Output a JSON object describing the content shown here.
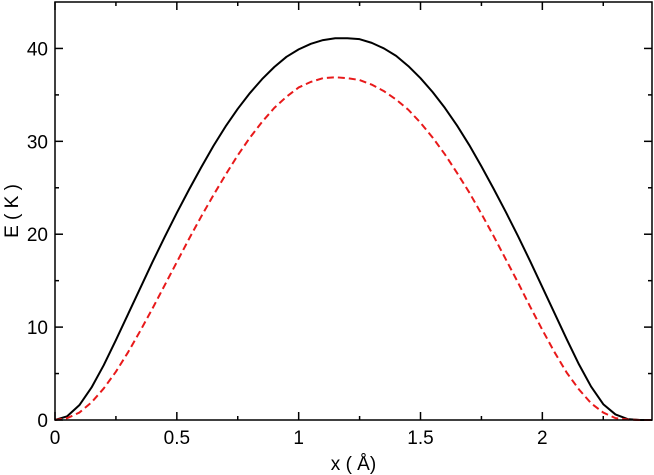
{
  "chart_data": {
    "type": "line",
    "title": "",
    "xlabel": "x ( Å)",
    "ylabel": "E ( K )",
    "xlim": [
      0,
      2.45
    ],
    "ylim": [
      0,
      45
    ],
    "grid": false,
    "legend": "none",
    "x_ticks": [
      0,
      0.5,
      1,
      1.5,
      2
    ],
    "x_tick_labels": [
      "0",
      "0.5",
      "1",
      "1.5",
      "2"
    ],
    "x_minor_ticks": [
      0.25,
      0.75,
      1.25,
      1.75,
      2.25
    ],
    "y_ticks": [
      0,
      10,
      20,
      30,
      40
    ],
    "y_tick_labels": [
      "0",
      "10",
      "20",
      "30",
      "40"
    ],
    "y_minor_ticks": [
      5,
      15,
      25,
      35
    ],
    "series": [
      {
        "color": "#000000",
        "style": "solid",
        "x": [
          0,
          0.05,
          0.1,
          0.15,
          0.2,
          0.25,
          0.3,
          0.35,
          0.4,
          0.45,
          0.5,
          0.55,
          0.6,
          0.65,
          0.7,
          0.75,
          0.8,
          0.85,
          0.9,
          0.95,
          1.0,
          1.05,
          1.1,
          1.15,
          1.2,
          1.25,
          1.3,
          1.35,
          1.4,
          1.45,
          1.5,
          1.55,
          1.6,
          1.65,
          1.7,
          1.75,
          1.8,
          1.85,
          1.9,
          1.95,
          2.0,
          2.05,
          2.1,
          2.15,
          2.2,
          2.25,
          2.3,
          2.35,
          2.4,
          2.45
        ],
        "y": [
          0,
          0.4,
          1.6,
          3.5,
          5.9,
          8.6,
          11.4,
          14.2,
          17.0,
          19.7,
          22.3,
          24.8,
          27.2,
          29.5,
          31.6,
          33.5,
          35.2,
          36.7,
          38.0,
          39.1,
          39.9,
          40.5,
          40.9,
          41.1,
          41.1,
          41.0,
          40.6,
          40.0,
          39.2,
          38.1,
          36.8,
          35.3,
          33.6,
          31.7,
          29.6,
          27.3,
          24.9,
          22.4,
          19.8,
          17.1,
          14.3,
          11.5,
          8.7,
          6.0,
          3.6,
          1.7,
          0.6,
          0.1,
          0,
          0
        ]
      },
      {
        "color": "#e8191a",
        "style": "dashed",
        "x": [
          0,
          0.05,
          0.1,
          0.15,
          0.2,
          0.25,
          0.3,
          0.35,
          0.4,
          0.45,
          0.5,
          0.55,
          0.6,
          0.65,
          0.7,
          0.75,
          0.8,
          0.85,
          0.9,
          0.95,
          1.0,
          1.05,
          1.1,
          1.15,
          1.2,
          1.25,
          1.3,
          1.35,
          1.4,
          1.45,
          1.5,
          1.55,
          1.6,
          1.65,
          1.7,
          1.75,
          1.8,
          1.85,
          1.9,
          1.95,
          2.0,
          2.05,
          2.1,
          2.15,
          2.2,
          2.25,
          2.3,
          2.35,
          2.4,
          2.45
        ],
        "y": [
          0,
          0.2,
          0.8,
          1.9,
          3.4,
          5.2,
          7.3,
          9.6,
          12.0,
          14.5,
          17.0,
          19.5,
          21.9,
          24.2,
          26.4,
          28.5,
          30.4,
          32.1,
          33.6,
          34.8,
          35.8,
          36.4,
          36.8,
          36.9,
          36.8,
          36.6,
          36.1,
          35.4,
          34.5,
          33.4,
          32.0,
          30.4,
          28.6,
          26.6,
          24.5,
          22.2,
          19.8,
          17.3,
          14.8,
          12.2,
          9.7,
          7.3,
          5.1,
          3.3,
          1.8,
          0.8,
          0.2,
          0.05,
          0,
          0
        ]
      }
    ]
  }
}
